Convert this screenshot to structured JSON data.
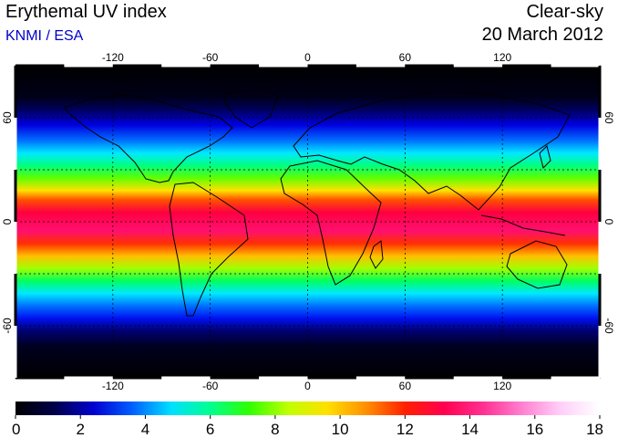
{
  "header": {
    "title": "Erythemal UV index",
    "credit": "KNMI / ESA",
    "credit_color": "#0000cc",
    "sky_type": "Clear-sky",
    "date": "20 March 2012"
  },
  "map": {
    "projection": "equirectangular",
    "lon_range": [
      -180,
      180
    ],
    "lat_range": [
      -90,
      90
    ],
    "lon_ticks": [
      {
        "value": -120,
        "label": "-120"
      },
      {
        "value": -60,
        "label": "-60"
      },
      {
        "value": 0,
        "label": "0"
      },
      {
        "value": 60,
        "label": "60"
      },
      {
        "value": 120,
        "label": "120"
      }
    ],
    "lat_ticks": [
      {
        "value": 60,
        "label": "60"
      },
      {
        "value": 0,
        "label": "0"
      },
      {
        "value": -60,
        "label": "-60"
      }
    ],
    "lat_gridlines": [
      60,
      30,
      0,
      -30,
      -60
    ],
    "lon_gridlines": [
      -120,
      -60,
      0,
      60,
      120
    ],
    "field": "clear-sky erythemal UV index, highest near the equator and decreasing toward the poles"
  },
  "colorbar": {
    "min": 0,
    "max": 18,
    "tick_labels": [
      "0",
      "2",
      "4",
      "6",
      "8",
      "10",
      "12",
      "14",
      "16",
      "18"
    ],
    "colors": [
      "#000000",
      "#00004a",
      "#0000d0",
      "#0060ff",
      "#00e0ff",
      "#00ff90",
      "#30ff00",
      "#c0ff00",
      "#ffe000",
      "#ff9000",
      "#ff2000",
      "#ff0050",
      "#ff3090",
      "#ff80d0",
      "#ffd0f8",
      "#ffffff"
    ]
  }
}
